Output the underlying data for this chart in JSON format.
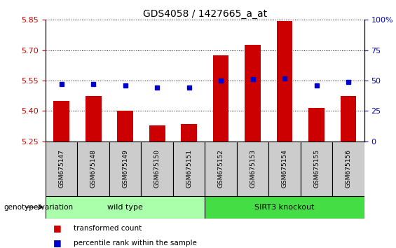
{
  "title": "GDS4058 / 1427665_a_at",
  "samples": [
    "GSM675147",
    "GSM675148",
    "GSM675149",
    "GSM675150",
    "GSM675151",
    "GSM675152",
    "GSM675153",
    "GSM675154",
    "GSM675155",
    "GSM675156"
  ],
  "transformed_count": [
    5.45,
    5.475,
    5.4,
    5.33,
    5.335,
    5.675,
    5.725,
    5.845,
    5.415,
    5.475
  ],
  "percentile_rank": [
    47,
    47,
    46,
    44,
    44,
    50,
    51,
    52,
    46,
    49
  ],
  "ylim_left": [
    5.25,
    5.85
  ],
  "ylim_right": [
    0,
    100
  ],
  "yticks_left": [
    5.25,
    5.4,
    5.55,
    5.7,
    5.85
  ],
  "yticks_right": [
    0,
    25,
    50,
    75,
    100
  ],
  "bar_color": "#CC0000",
  "dot_color": "#0000CC",
  "groups": [
    {
      "label": "wild type",
      "indices": [
        0,
        1,
        2,
        3,
        4
      ],
      "color": "#AAFFAA"
    },
    {
      "label": "SIRT3 knockout",
      "indices": [
        5,
        6,
        7,
        8,
        9
      ],
      "color": "#44DD44"
    }
  ],
  "group_label": "genotype/variation",
  "legend_bar_label": "transformed count",
  "legend_dot_label": "percentile rank within the sample",
  "background_color": "#ffffff",
  "tick_label_color_left": "#CC0000",
  "tick_label_color_right": "#0000CC",
  "sample_box_color": "#CCCCCC",
  "bar_width": 0.5
}
